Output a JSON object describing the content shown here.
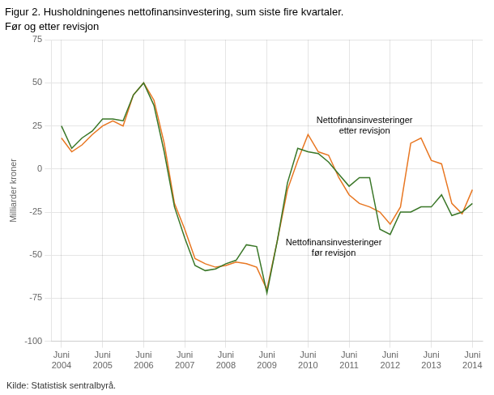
{
  "chart_data": {
    "type": "line",
    "title": "Figur 2. Husholdningenes nettofinansinvestering, sum siste fire kvartaler.",
    "subtitle": "Før og etter revisjon",
    "ylabel": "Milliarder kroner",
    "source": "Kilde: Statistisk sentralbyrå.",
    "x": [
      0,
      1,
      2,
      3,
      4,
      5,
      6,
      7,
      8,
      9,
      10,
      11,
      12,
      13,
      14,
      15,
      16,
      17,
      18,
      19,
      20,
      21,
      22,
      23,
      24,
      25,
      26,
      27,
      28,
      29,
      30,
      31,
      32,
      33,
      34,
      35,
      36,
      37,
      38,
      39,
      40
    ],
    "series": [
      {
        "color": "#3a7728",
        "values": [
          25,
          12,
          18,
          22,
          29,
          29,
          28,
          43,
          50,
          37,
          10,
          -22,
          -40,
          -56,
          -59,
          -58,
          -55,
          -53,
          -44,
          -45,
          -72,
          -42,
          -8,
          12,
          10,
          9,
          4,
          -3,
          -10,
          -5,
          -5,
          -35,
          -38,
          -25,
          -25,
          -22,
          -22,
          -15,
          -27,
          -25,
          -20
        ]
      },
      {
        "color": "#e87722",
        "values": [
          18,
          10,
          14,
          20,
          25,
          28,
          25,
          43,
          50,
          40,
          15,
          -20,
          -35,
          -52,
          -55,
          -57,
          -56,
          -54,
          -55,
          -57,
          -70,
          -42,
          -12,
          5,
          20,
          10,
          8,
          -5,
          -15,
          -20,
          -22,
          -25,
          -32,
          -22,
          15,
          18,
          5,
          3,
          -20,
          -26,
          -12
        ]
      }
    ],
    "xlim": [
      -1,
      41
    ],
    "xticks": [
      {
        "value": 0,
        "label": "Juni\n2004"
      },
      {
        "value": 4,
        "label": "Juni\n2005"
      },
      {
        "value": 8,
        "label": "Juni\n2006"
      },
      {
        "value": 12,
        "label": "Juni\n2007"
      },
      {
        "value": 16,
        "label": "Juni\n2008"
      },
      {
        "value": 20,
        "label": "Juni\n2009"
      },
      {
        "value": 24,
        "label": "Juni\n2010"
      },
      {
        "value": 28,
        "label": "Juni\n2011"
      },
      {
        "value": 32,
        "label": "Juni\n2012"
      },
      {
        "value": 36,
        "label": "Juni\n2013"
      },
      {
        "value": 40,
        "label": "Juni\n2014"
      }
    ],
    "ylim": [
      -100,
      75
    ],
    "yticks": [
      -100,
      -75,
      -50,
      -25,
      0,
      25,
      50,
      75
    ],
    "grid": true,
    "annotations": [
      {
        "text": "Nettofinansinvesteringer\netter revisjon",
        "x": 29.5,
        "y": 25
      },
      {
        "text": "Nettofinansinvesteringer\nfør revisjon",
        "x": 26.5,
        "y": -46
      }
    ]
  }
}
